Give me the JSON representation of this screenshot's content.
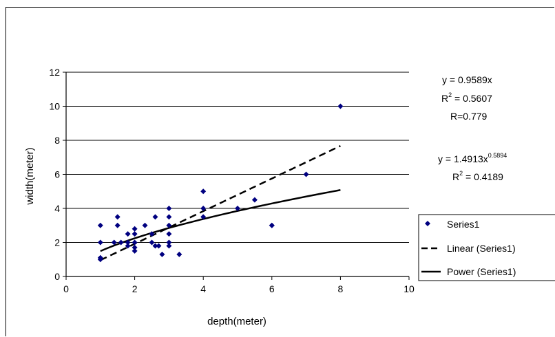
{
  "chart_data": {
    "type": "scatter",
    "title": "",
    "xlabel": "depth(meter)",
    "ylabel": "width(meter)",
    "xlim": [
      0,
      10
    ],
    "ylim": [
      0,
      12
    ],
    "xticks": [
      "0",
      "2",
      "4",
      "6",
      "8",
      "10"
    ],
    "yticks": [
      "0",
      "2",
      "4",
      "6",
      "8",
      "10",
      "12"
    ],
    "grid": "horizontal",
    "legend_position": "right",
    "series": [
      {
        "name": "Series1",
        "kind": "scatter",
        "color": "#000080",
        "marker": "diamond",
        "x": [
          1,
          1,
          1,
          1,
          1.4,
          1.5,
          1.5,
          1.6,
          1.8,
          1.8,
          1.8,
          2,
          2,
          2,
          2,
          2,
          2.3,
          2.5,
          2.5,
          2.6,
          2.6,
          2.7,
          2.8,
          3,
          3,
          3,
          3,
          3,
          3,
          3.3,
          4,
          4,
          4,
          5,
          5.5,
          6,
          6,
          7,
          8
        ],
        "y": [
          1,
          1.1,
          2,
          3,
          2,
          3,
          3.5,
          2,
          1.8,
          2,
          2.5,
          1.5,
          1.7,
          2,
          2.5,
          2.8,
          3,
          2,
          2.5,
          1.8,
          3.5,
          1.8,
          1.3,
          1.8,
          2,
          2.5,
          3,
          3.5,
          4,
          1.3,
          3.5,
          4,
          5,
          4,
          4.5,
          3,
          3,
          6,
          10
        ]
      },
      {
        "name": "Linear (Series1)",
        "kind": "trendline",
        "fit": "linear",
        "coefficient": 0.9589,
        "x_range": [
          1,
          8
        ],
        "dash": "dashed"
      },
      {
        "name": "Power (Series1)",
        "kind": "trendline",
        "fit": "power",
        "coefficient": 1.4913,
        "exponent": 0.5894,
        "x_range": [
          1,
          8
        ],
        "dash": "solid"
      }
    ],
    "annotations": {
      "linear_eq": "y = 0.9589x",
      "linear_r2_lead": "R",
      "linear_r2_sup": "2",
      "linear_r2_value": " = 0.5607",
      "linear_r": "R=0.779",
      "power_eq_lead": "y = 1.4913x",
      "power_eq_sup": "0.5894",
      "power_r2_lead": "R",
      "power_r2_sup": "2",
      "power_r2_value": " = 0.4189"
    }
  }
}
